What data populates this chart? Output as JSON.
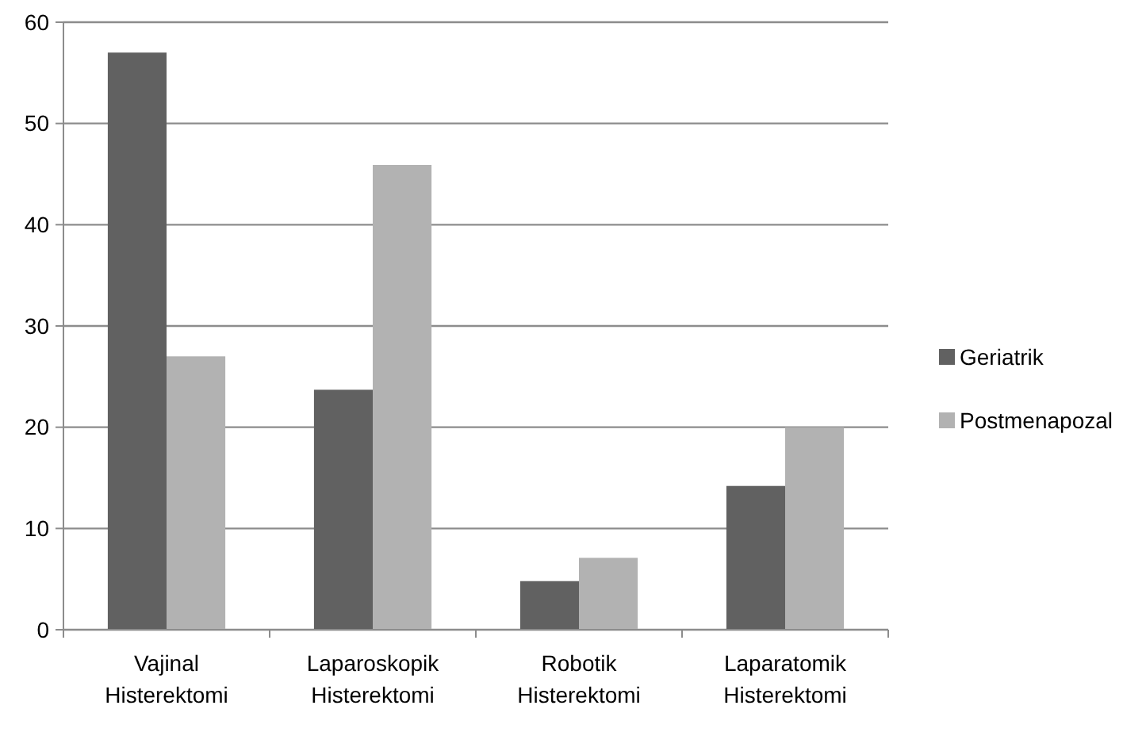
{
  "chart_data": {
    "type": "bar",
    "categories": [
      "Vajinal Histerektomi",
      "Laparoskopik Histerektomi",
      "Robotik Histerektomi",
      "Laparatomik Histerektomi"
    ],
    "series": [
      {
        "name": "Geriatrik",
        "color": "#616161",
        "values": [
          57.0,
          23.7,
          4.8,
          14.2
        ]
      },
      {
        "name": "Postmenapozal",
        "color": "#b2b2b2",
        "values": [
          27.0,
          45.9,
          7.1,
          20.0
        ]
      }
    ],
    "ylim": [
      0,
      60
    ],
    "yticks": [
      0,
      10,
      20,
      30,
      40,
      50,
      60
    ],
    "grid": "y",
    "legend": "right"
  }
}
